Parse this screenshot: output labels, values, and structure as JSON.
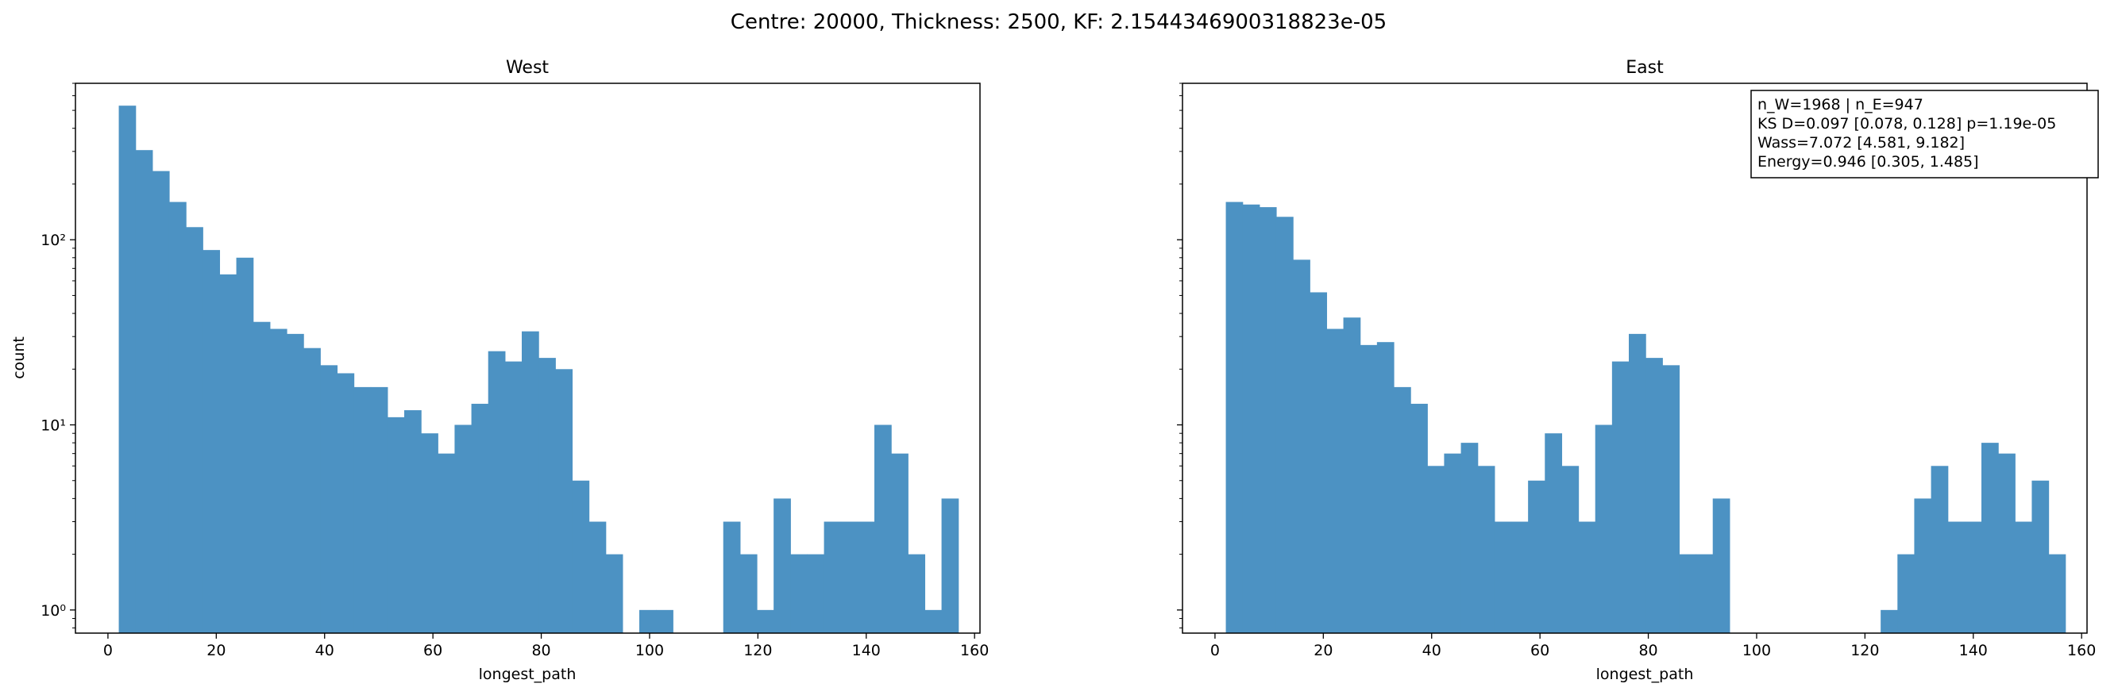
{
  "figure": {
    "suptitle": "Centre: 20000, Thickness: 2500, KF: 2.1544346900318823e-05"
  },
  "chart_data": [
    {
      "type": "bar",
      "title": "West",
      "xlabel": "longest_path",
      "ylabel": "count",
      "yscale": "log",
      "xlim": [
        -6,
        161
      ],
      "ylim": [
        0.75,
        700
      ],
      "xticks": [
        0,
        20,
        40,
        60,
        80,
        100,
        120,
        140,
        160
      ],
      "yticks": [
        {
          "value": 1,
          "label": "10⁰"
        },
        {
          "value": 10,
          "label": "10¹"
        },
        {
          "value": 100,
          "label": "10²"
        }
      ],
      "bin_width": 3.1,
      "bins_start": [
        2.0,
        5.1,
        8.2,
        11.3,
        14.4,
        17.5,
        20.6,
        23.7,
        26.8,
        29.9,
        33.0,
        36.1,
        39.2,
        42.3,
        45.4,
        48.5,
        51.6,
        54.7,
        57.8,
        60.9,
        64.0,
        67.1,
        70.2,
        73.3,
        76.4,
        79.5,
        82.6,
        85.7,
        88.8,
        91.9,
        95.0,
        98.1,
        101.2,
        104.3,
        107.4,
        110.5,
        113.6,
        116.7,
        119.8,
        122.9,
        126.0,
        129.1,
        132.2,
        135.3,
        138.4,
        141.5,
        144.6,
        147.7,
        150.8,
        153.9
      ],
      "values": [
        530,
        305,
        235,
        160,
        117,
        88,
        65,
        80,
        36,
        33,
        31,
        26,
        21,
        19,
        16,
        16,
        11,
        12,
        9,
        7,
        10,
        13,
        25,
        22,
        32,
        23,
        20,
        5,
        3,
        2,
        0,
        1,
        1,
        0,
        0,
        0,
        3,
        2,
        1,
        4,
        2,
        2,
        3,
        3,
        3,
        10,
        7,
        2,
        1,
        4
      ],
      "color": "#4c92c3"
    },
    {
      "type": "bar",
      "title": "East",
      "xlabel": "longest_path",
      "ylabel": "",
      "yscale": "log",
      "xlim": [
        -6,
        161
      ],
      "ylim": [
        0.75,
        700
      ],
      "xticks": [
        0,
        20,
        40,
        60,
        80,
        100,
        120,
        140,
        160
      ],
      "bin_width": 3.1,
      "bins_start": [
        2.0,
        5.1,
        8.2,
        11.3,
        14.4,
        17.5,
        20.6,
        23.7,
        26.8,
        29.9,
        33.0,
        36.1,
        39.2,
        42.3,
        45.4,
        48.5,
        51.6,
        54.7,
        57.8,
        60.9,
        64.0,
        67.1,
        70.2,
        73.3,
        76.4,
        79.5,
        82.6,
        85.7,
        88.8,
        91.9,
        95.0,
        98.1,
        101.2,
        104.3,
        107.4,
        110.5,
        113.6,
        116.7,
        119.8,
        122.9,
        126.0,
        129.1,
        132.2,
        135.3,
        138.4,
        141.5,
        144.6,
        147.7,
        150.8,
        153.9
      ],
      "values": [
        160,
        155,
        150,
        133,
        78,
        52,
        33,
        38,
        27,
        28,
        16,
        13,
        6,
        7,
        8,
        6,
        3,
        3,
        5,
        9,
        6,
        3,
        10,
        22,
        31,
        23,
        21,
        2,
        2,
        4,
        0,
        0,
        0,
        0,
        0,
        0,
        0,
        0,
        0,
        1,
        2,
        4,
        6,
        3,
        3,
        8,
        7,
        3,
        5,
        2
      ],
      "color": "#4c92c3",
      "stats_box": [
        "n_W=1968 | n_E=947",
        "KS D=0.097 [0.078, 0.128]  p=1.19e-05",
        "Wass=7.072 [4.581, 9.182]",
        "Energy=0.946 [0.305, 1.485]"
      ]
    }
  ]
}
